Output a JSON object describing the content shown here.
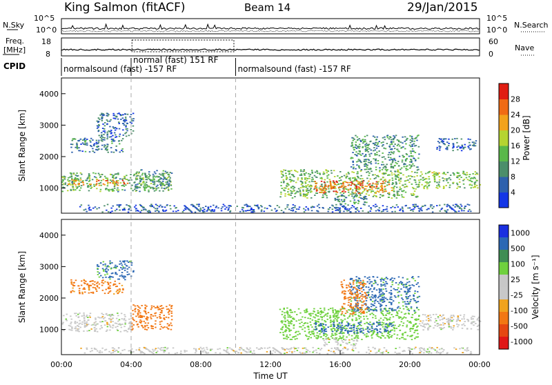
{
  "header": {
    "station": "King Salmon (fitACF)",
    "beam": "Beam 14",
    "date": "29/Jan/2015"
  },
  "noise_panel": {
    "left_label": "N.Sky",
    "right_label": "N.Search",
    "left_ticks": [
      "10^5",
      "10^0"
    ],
    "right_ticks": [
      "10^5",
      "10^0"
    ]
  },
  "freq_panel": {
    "left_label_line1": "Freq.",
    "left_label_line2": "[MHz]",
    "left_ticks": [
      "18",
      "8"
    ],
    "right_label": "Nave",
    "right_ticks": [
      "60",
      "0"
    ]
  },
  "cpid": {
    "label": "CPID",
    "segments": [
      {
        "text": "normalsound (fast) -157 RF",
        "start_hour": 0.0,
        "end_hour": 4.0
      },
      {
        "text": "normal (fast)  151 RF",
        "start_hour": 4.0,
        "end_hour": 10.0
      },
      {
        "text": "normalsound (fast) -157 RF",
        "start_hour": 10.0,
        "end_hour": 24.0
      }
    ]
  },
  "time_axis": {
    "label": "Time UT",
    "ticks": [
      "00:00",
      "04:00",
      "08:00",
      "12:00",
      "16:00",
      "20:00",
      "00:00"
    ],
    "marker_hours": [
      4.0,
      10.0
    ]
  },
  "colors": {
    "power": [
      "#1436e6",
      "#2e61ad",
      "#4b8e6a",
      "#5ab84a",
      "#b5d431",
      "#f2a21b",
      "#f06b14",
      "#e01d12"
    ],
    "velocity": [
      "#1a2fe0",
      "#2c68b4",
      "#3f8d54",
      "#6fd13e",
      "#c7c7c7",
      "#c8c8c8",
      "#f0a31e",
      "#f27713",
      "#e54712",
      "#e01717"
    ]
  },
  "chart_data": [
    {
      "type": "heatmap",
      "name": "power",
      "ylabel": "Slant Range [km]",
      "xlabel": "Time UT",
      "xlim": [
        0,
        24
      ],
      "ylim": [
        200,
        4500
      ],
      "yticks": [
        "1000",
        "2000",
        "3000",
        "4000"
      ],
      "colorbar": {
        "label": "Power [dB]",
        "ticks": [
          "4",
          "8",
          "12",
          "16",
          "20",
          "24",
          "28"
        ],
        "range": [
          0,
          30
        ]
      },
      "regions": [
        {
          "t0": 0.0,
          "t1": 6.3,
          "r0": 900,
          "r1": 1500,
          "v": 12
        },
        {
          "t0": 0.3,
          "t1": 3.8,
          "r0": 1100,
          "r1": 1300,
          "v": 22
        },
        {
          "t0": 0.5,
          "t1": 3.5,
          "r0": 2150,
          "r1": 2600,
          "v": 8
        },
        {
          "t0": 2.0,
          "t1": 4.1,
          "r0": 2600,
          "r1": 3400,
          "v": 6
        },
        {
          "t0": 4.2,
          "t1": 6.2,
          "r0": 1000,
          "r1": 1600,
          "v": 10
        },
        {
          "t0": 12.5,
          "t1": 20.5,
          "r0": 700,
          "r1": 1600,
          "v": 13
        },
        {
          "t0": 14.5,
          "t1": 19.0,
          "r0": 850,
          "r1": 1250,
          "v": 24
        },
        {
          "t0": 16.5,
          "t1": 20.5,
          "r0": 1600,
          "r1": 2700,
          "v": 10
        },
        {
          "t0": 20.5,
          "t1": 24.0,
          "r0": 1000,
          "r1": 1550,
          "v": 14
        },
        {
          "t0": 21.5,
          "t1": 23.8,
          "r0": 2200,
          "r1": 2600,
          "v": 6
        },
        {
          "t0": 15.5,
          "t1": 17.5,
          "r0": 500,
          "r1": 800,
          "v": 9
        },
        {
          "t0": 1.0,
          "t1": 23.5,
          "r0": 250,
          "r1": 500,
          "v": 5
        }
      ]
    },
    {
      "type": "heatmap",
      "name": "velocity",
      "ylabel": "Slant Range [km]",
      "xlabel": "Time UT",
      "xlim": [
        0,
        24
      ],
      "ylim": [
        200,
        4500
      ],
      "yticks": [
        "1000",
        "2000",
        "3000",
        "4000"
      ],
      "colorbar": {
        "label": "Velocity [m s⁻¹]",
        "ticks": [
          "1000",
          "500",
          "100",
          "25",
          "-25",
          "-100",
          "-500",
          "-1000"
        ],
        "range": [
          -1000,
          1000
        ]
      },
      "regions": [
        {
          "t0": 0.0,
          "t1": 4.0,
          "r0": 950,
          "r1": 1550,
          "v": 0
        },
        {
          "t0": 4.0,
          "t1": 6.3,
          "r0": 1000,
          "r1": 1800,
          "v": -150
        },
        {
          "t0": 0.5,
          "t1": 3.5,
          "r0": 2150,
          "r1": 2600,
          "v": -120
        },
        {
          "t0": 2.0,
          "t1": 4.1,
          "r0": 2600,
          "r1": 3200,
          "v": 120
        },
        {
          "t0": 12.5,
          "t1": 20.5,
          "r0": 700,
          "r1": 1700,
          "v": 60
        },
        {
          "t0": 14.5,
          "t1": 19.0,
          "r0": 900,
          "r1": 1250,
          "v": 150
        },
        {
          "t0": 16.5,
          "t1": 20.5,
          "r0": 1600,
          "r1": 2700,
          "v": 120
        },
        {
          "t0": 16.0,
          "t1": 17.5,
          "r0": 1500,
          "r1": 2600,
          "v": -150
        },
        {
          "t0": 20.5,
          "t1": 24.0,
          "r0": 1000,
          "r1": 1500,
          "v": 0
        },
        {
          "t0": 15.0,
          "t1": 17.0,
          "r0": 500,
          "r1": 750,
          "v": 0
        },
        {
          "t0": 1.0,
          "t1": 23.5,
          "r0": 250,
          "r1": 450,
          "v": 0
        }
      ]
    }
  ]
}
